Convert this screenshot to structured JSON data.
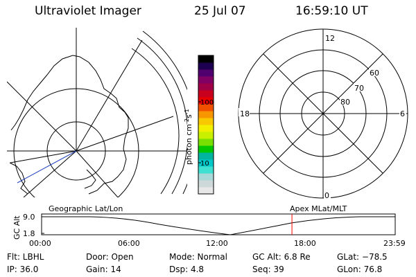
{
  "header": {
    "title": "Ultraviolet Imager",
    "date": "25 Jul 07",
    "time": "16:59:10 UT"
  },
  "colorbar": {
    "axis_label": "photon cm-2s-1",
    "ticks": [
      "100",
      "10"
    ],
    "colors": [
      "#e8e8e8",
      "#cfd8d8",
      "#a8d8d8",
      "#40e0d0",
      "#00c8c8",
      "#00b4a0",
      "#00c800",
      "#78e000",
      "#c8f000",
      "#f0f000",
      "#f8c800",
      "#f89600",
      "#f05000",
      "#e80000",
      "#c8001e",
      "#a00046",
      "#800064",
      "#50006e",
      "#1e0050",
      "#000000"
    ]
  },
  "polar_grid": {
    "mlt_labels": [
      "12",
      "18",
      "6",
      "0"
    ],
    "mlat_labels": [
      "60",
      "70",
      "80"
    ]
  },
  "timeline": {
    "left_title": "Geographic Lat/Lon",
    "right_title": "Apex MLat/MLT",
    "yaxis_label": "GC Alt",
    "y_ticks": [
      "9.0",
      "1.8"
    ],
    "x_ticks": [
      "00:00",
      "06:00",
      "12:00",
      "18:00",
      "23:59"
    ],
    "marker_time_fraction": 0.708,
    "marker_color": "#ff0000"
  },
  "info": {
    "flt": "Flt: LBHL",
    "ip": "IP: 36.0",
    "door": "Door: Open",
    "gain": "Gain: 14",
    "mode": "Mode: Normal",
    "dsp": "Dsp:     4.8",
    "gcalt": "GC Alt: 6.8 Re",
    "seq": "Seq: 39",
    "glat": "GLat: −78.5",
    "glon": "GLon:  76.8"
  }
}
